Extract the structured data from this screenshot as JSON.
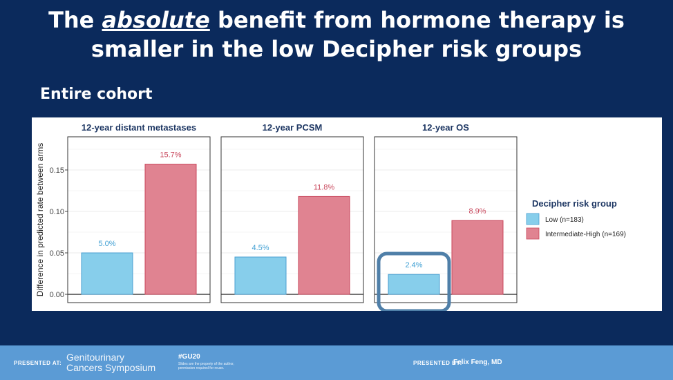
{
  "slide": {
    "title_pre": "The ",
    "title_em": "absolute",
    "title_post": " benefit from hormone therapy is smaller in the low Decipher risk groups",
    "subtitle": "Entire cohort"
  },
  "footer": {
    "presented_at_label": "PRESENTED AT:",
    "symposium_line1": "Genitourinary",
    "symposium_line2": "Cancers Symposium",
    "hashtag": "#GU20",
    "note": "Slides are the property of the author, permission required for reuse.",
    "presented_by_label": "PRESENTED BY:",
    "presenter": "Felix Feng, MD"
  },
  "chart_data": {
    "type": "bar",
    "ylabel": "Difference in predicted rate between arms",
    "ylim": [
      -0.01,
      0.19
    ],
    "yticks": [
      "0.00",
      "0.05",
      "0.10",
      "0.15"
    ],
    "legend": {
      "title": "Decipher risk group",
      "placement": "right"
    },
    "series": [
      {
        "name": "Low (n=183)",
        "color": "#87ceeb"
      },
      {
        "name": "Intermediate-High (n=169)",
        "color": "#e08391"
      }
    ],
    "colors": {
      "low_border": "#4a9fd0",
      "high_border": "#c8455a",
      "low_label": "#3f9fd3",
      "high_label": "#c9485d",
      "highlight": "#4f7fa8"
    },
    "panels": [
      {
        "title": "12-year distant metastases",
        "values": [
          0.05,
          0.157
        ],
        "labels": [
          "5.0%",
          "15.7%"
        ]
      },
      {
        "title": "12-year PCSM",
        "values": [
          0.045,
          0.118
        ],
        "labels": [
          "4.5%",
          "11.8%"
        ]
      },
      {
        "title": "12-year OS",
        "values": [
          0.024,
          0.089
        ],
        "labels": [
          "2.4%",
          "8.9%"
        ],
        "highlight_series": 0
      }
    ]
  }
}
